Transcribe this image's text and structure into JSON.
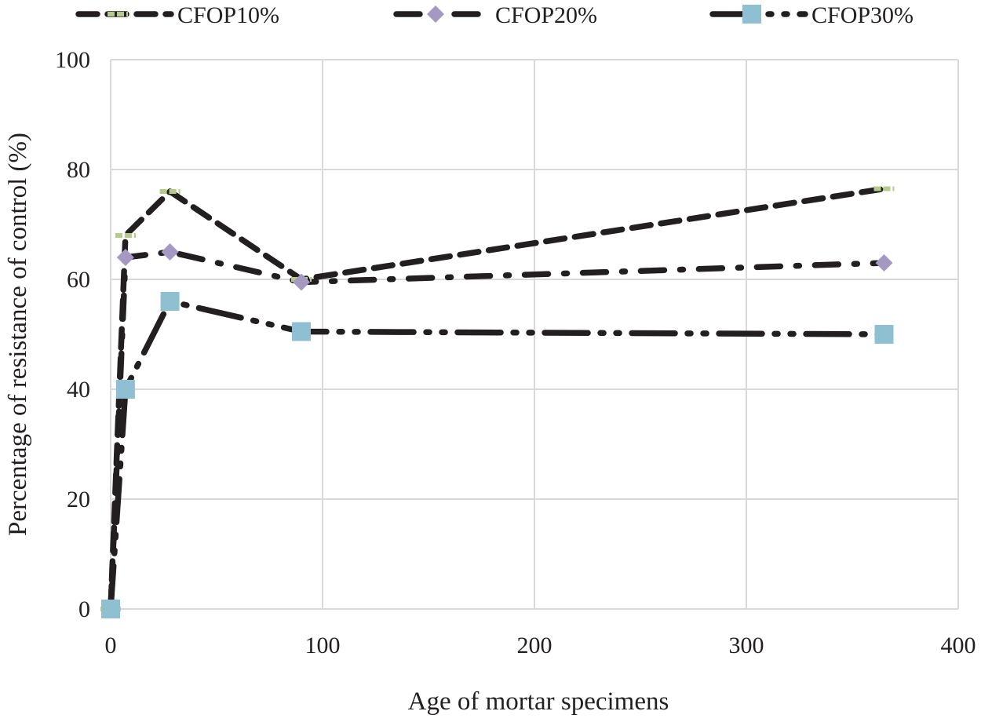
{
  "chart_data": {
    "type": "line",
    "title": "",
    "xlabel": "Age of mortar specimens",
    "ylabel": "Percentage of resistance of control (%)",
    "xlim": [
      0,
      400
    ],
    "ylim": [
      0,
      100
    ],
    "x_ticks": [
      0,
      100,
      200,
      300,
      400
    ],
    "y_ticks": [
      0,
      20,
      40,
      60,
      80,
      100
    ],
    "grid": true,
    "legend_position": "top",
    "series": [
      {
        "name": "CFOP10%",
        "x": [
          0,
          7,
          28,
          90,
          365
        ],
        "values": [
          0,
          68,
          76,
          60,
          76.5
        ],
        "marker": "dash",
        "marker_color": "#b4cc8a",
        "line_style": "dash"
      },
      {
        "name": "CFOP20%",
        "x": [
          0,
          7,
          28,
          90,
          365
        ],
        "values": [
          0,
          64,
          65,
          59.5,
          63
        ],
        "marker": "diamond",
        "marker_color": "#a598c1",
        "line_style": "dash-dot"
      },
      {
        "name": "CFOP30%",
        "x": [
          0,
          7,
          28,
          90,
          365
        ],
        "values": [
          0,
          40,
          56,
          50.5,
          50
        ],
        "marker": "square",
        "marker_color": "#8ec0d1",
        "line_style": "long-dash-dot-dot"
      }
    ],
    "line_color": "#231f20",
    "grid_color": "#d9d9d9"
  }
}
